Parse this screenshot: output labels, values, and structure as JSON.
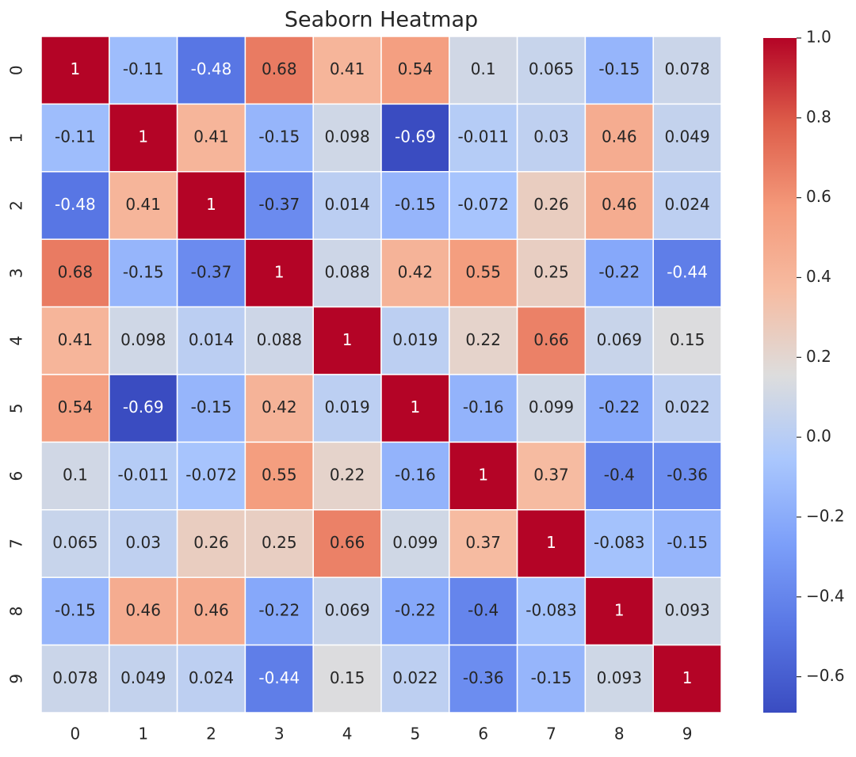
{
  "chart_data": {
    "type": "heatmap",
    "title": "Seaborn Heatmap",
    "x_categories": [
      "0",
      "1",
      "2",
      "3",
      "4",
      "5",
      "6",
      "7",
      "8",
      "9"
    ],
    "y_categories": [
      "0",
      "1",
      "2",
      "3",
      "4",
      "5",
      "6",
      "7",
      "8",
      "9"
    ],
    "values": [
      [
        1,
        -0.11,
        -0.48,
        0.68,
        0.41,
        0.54,
        0.1,
        0.065,
        -0.15,
        0.078
      ],
      [
        -0.11,
        1,
        0.41,
        -0.15,
        0.098,
        -0.69,
        -0.011,
        0.03,
        0.46,
        0.049
      ],
      [
        -0.48,
        0.41,
        1,
        -0.37,
        0.014,
        -0.15,
        -0.072,
        0.26,
        0.46,
        0.024
      ],
      [
        0.68,
        -0.15,
        -0.37,
        1,
        0.088,
        0.42,
        0.55,
        0.25,
        -0.22,
        -0.44
      ],
      [
        0.41,
        0.098,
        0.014,
        0.088,
        1,
        0.019,
        0.22,
        0.66,
        0.069,
        0.15
      ],
      [
        0.54,
        -0.69,
        -0.15,
        0.42,
        0.019,
        1,
        -0.16,
        0.099,
        -0.22,
        0.022
      ],
      [
        0.1,
        -0.011,
        -0.072,
        0.55,
        0.22,
        -0.16,
        1,
        0.37,
        -0.4,
        -0.36
      ],
      [
        0.065,
        0.03,
        0.26,
        0.25,
        0.66,
        0.099,
        0.37,
        1,
        -0.083,
        -0.15
      ],
      [
        -0.15,
        0.46,
        0.46,
        -0.22,
        0.069,
        -0.22,
        -0.4,
        -0.083,
        1,
        0.093
      ],
      [
        0.078,
        0.049,
        0.024,
        -0.44,
        0.15,
        0.022,
        -0.36,
        -0.15,
        0.093,
        1
      ]
    ],
    "colormap": "coolwarm",
    "clim": [
      -0.69,
      1
    ],
    "cticks": [
      {
        "value": 1,
        "label": "1.0"
      },
      0.8,
      0.6,
      0.4,
      0.2,
      {
        "value": 0,
        "label": "0.0"
      },
      {
        "value": -0.2,
        "label": "−0.2"
      },
      {
        "value": -0.4,
        "label": "−0.4"
      },
      {
        "value": -0.6,
        "label": "−0.6"
      }
    ]
  }
}
